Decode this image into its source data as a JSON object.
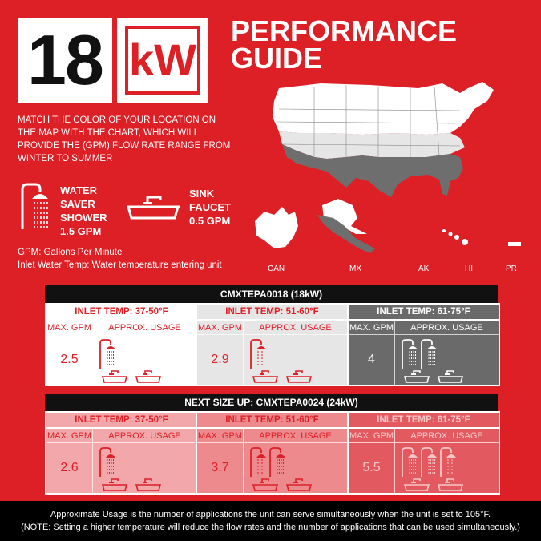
{
  "hero": {
    "number": "18",
    "unit": "kW"
  },
  "title": {
    "line1": "PERFORMANCE",
    "line2": "GUIDE"
  },
  "intro": {
    "text": "MATCH THE COLOR OF YOUR LOCATION ON THE MAP WITH THE CHART, WHICH WILL PROVIDE THE  (GPM) FLOW RATE RANGE FROM WINTER TO SUMMER"
  },
  "legend": {
    "shower": {
      "line1": "WATER",
      "line2": "SAVER",
      "line3": "SHOWER",
      "line4": "1.5 GPM",
      "icon": "shower-icon"
    },
    "sink": {
      "line1": "SINK",
      "line2": "FAUCET",
      "line3": "0.5 GPM",
      "icon": "sink-faucet-icon"
    }
  },
  "notes": {
    "gpm": "GPM: Gallons Per Minute",
    "inlet": "Inlet Water Temp: Water temperature entering unit"
  },
  "map": {
    "labels": [
      "CAN",
      "MX",
      "AK",
      "HI",
      "PR"
    ]
  },
  "colors": {
    "red": "#dd1f26",
    "light": "#ffffff",
    "mid": "#e8e8e8",
    "dark": "#6a6a6a"
  },
  "tables": [
    {
      "header": "CMXTEPA0018 (18kW)",
      "panels": [
        {
          "title": "INLET TEMP: 37-50°F",
          "col1": "MAX. GPM",
          "col2": "APPROX. USAGE",
          "gpm": "2.5",
          "showers": 1,
          "sinks": 2,
          "theme": "white"
        },
        {
          "title": "INLET TEMP: 51-60°F",
          "col1": "MAX. GPM",
          "col2": "APPROX. USAGE",
          "gpm": "2.9",
          "showers": 1,
          "sinks": 2,
          "theme": "light"
        },
        {
          "title": "INLET TEMP: 61-75°F",
          "col1": "MAX. GPM",
          "col2": "APPROX. USAGE",
          "gpm": "4",
          "showers": 2,
          "sinks": 2,
          "theme": "dark"
        }
      ]
    },
    {
      "header": "NEXT SIZE UP: CMXTEPA0024 (24kW)",
      "panels": [
        {
          "title": "INLET TEMP: 37-50°F",
          "col1": "MAX. GPM",
          "col2": "APPROX. USAGE",
          "gpm": "2.6",
          "showers": 1,
          "sinks": 2,
          "theme": "pink1"
        },
        {
          "title": "INLET TEMP: 51-60°F",
          "col1": "MAX. GPM",
          "col2": "APPROX. USAGE",
          "gpm": "3.7",
          "showers": 2,
          "sinks": 2,
          "theme": "pink2"
        },
        {
          "title": "INLET TEMP: 61-75°F",
          "col1": "MAX. GPM",
          "col2": "APPROX. USAGE",
          "gpm": "5.5",
          "showers": 3,
          "sinks": 2,
          "theme": "pink3"
        }
      ]
    }
  ],
  "footer": {
    "line1": "Approximate Usage is the number of applications the unit can serve simultaneously when the unit is set to 105°F.",
    "line2": "(NOTE:  Setting a higher temperature will reduce the flow rates and the number of applications that can be used simultaneously.)"
  }
}
